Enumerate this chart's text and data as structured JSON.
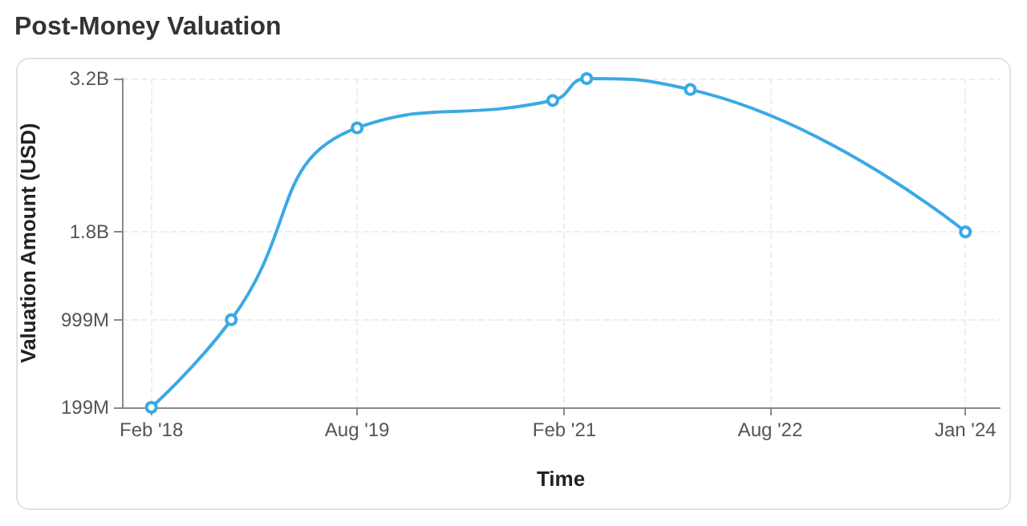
{
  "chart_data": {
    "type": "line",
    "title": "Post-Money Valuation",
    "xlabel": "Time",
    "ylabel": "Valuation Amount (USD)",
    "x": [
      "2018-02",
      "2018-09",
      "2019-08",
      "2021-01",
      "2021-04",
      "2022-01",
      "2024-01"
    ],
    "series": [
      {
        "color": "#3aa9e4",
        "values": [
          199000000,
          999000000,
          2750000000,
          3000000000,
          3200000000,
          3100000000,
          1800000000
        ]
      }
    ],
    "xlim": [
      "2017-11-15",
      "2024-04"
    ],
    "xticks": [
      {
        "value": "2018-02",
        "label": "Feb '18"
      },
      {
        "value": "2019-08",
        "label": "Aug '19"
      },
      {
        "value": "2021-02",
        "label": "Feb '21"
      },
      {
        "value": "2022-08",
        "label": "Aug '22"
      },
      {
        "value": "2024-01",
        "label": "Jan '24"
      }
    ],
    "ylim": [
      199000000,
      3200000000
    ],
    "yticks": [
      {
        "value": 199000000,
        "label": "199M"
      },
      {
        "value": 999000000,
        "label": "999M"
      },
      {
        "value": 1800000000,
        "label": "1.8B"
      },
      {
        "value": 3200000000,
        "label": "3.2B"
      }
    ],
    "grid": true,
    "marker": "circle",
    "line_style": "solid"
  }
}
